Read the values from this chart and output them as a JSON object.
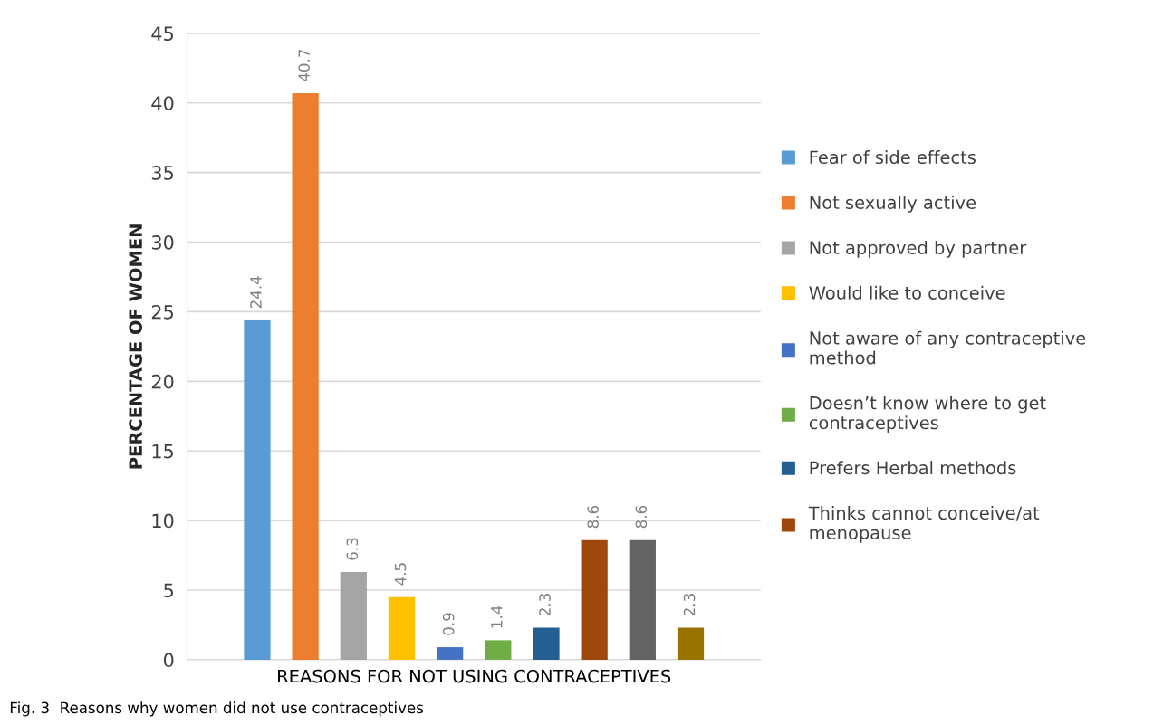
{
  "chart_data": {
    "type": "bar",
    "xlabel": "REASONS FOR NOT USING CONTRACEPTIVES",
    "ylabel": "PERCENTAGE OF WOMEN",
    "categories": [
      null
    ],
    "series": [
      {
        "name": "Fear of side effects",
        "color": "#5b9bd5",
        "values": [
          24.4
        ]
      },
      {
        "name": "Not sexually active",
        "color": "#ed7d31",
        "values": [
          40.7
        ]
      },
      {
        "name": "Not approved by partner",
        "color": "#a5a5a5",
        "values": [
          6.3
        ]
      },
      {
        "name": "Would like to conceive",
        "color": "#ffc000",
        "values": [
          4.5
        ]
      },
      {
        "name": "Not aware of any contraceptive\nmethod",
        "color": "#4472c4",
        "values": [
          0.9
        ]
      },
      {
        "name": "Doesn’t know where to get\ncontraceptives",
        "color": "#70ad47",
        "values": [
          1.4
        ]
      },
      {
        "name": "Prefers Herbal methods",
        "color": "#255e91",
        "values": [
          2.3
        ]
      },
      {
        "name": "Thinks cannot conceive/at\nmenopause",
        "color": "#9e480e",
        "values": [
          8.6
        ]
      },
      {
        "color": "#636363",
        "values": [
          8.6
        ]
      },
      {
        "color": "#997300",
        "values": [
          2.3
        ]
      }
    ],
    "ylim": [
      0,
      45
    ],
    "yticks": [
      0,
      5,
      10,
      15,
      20,
      25,
      30,
      35,
      40,
      45
    ],
    "grid": "y",
    "legend": "right",
    "data_labels": true,
    "annotations": [
      "Fig. 3  Reasons why women did not use contraceptives"
    ]
  }
}
